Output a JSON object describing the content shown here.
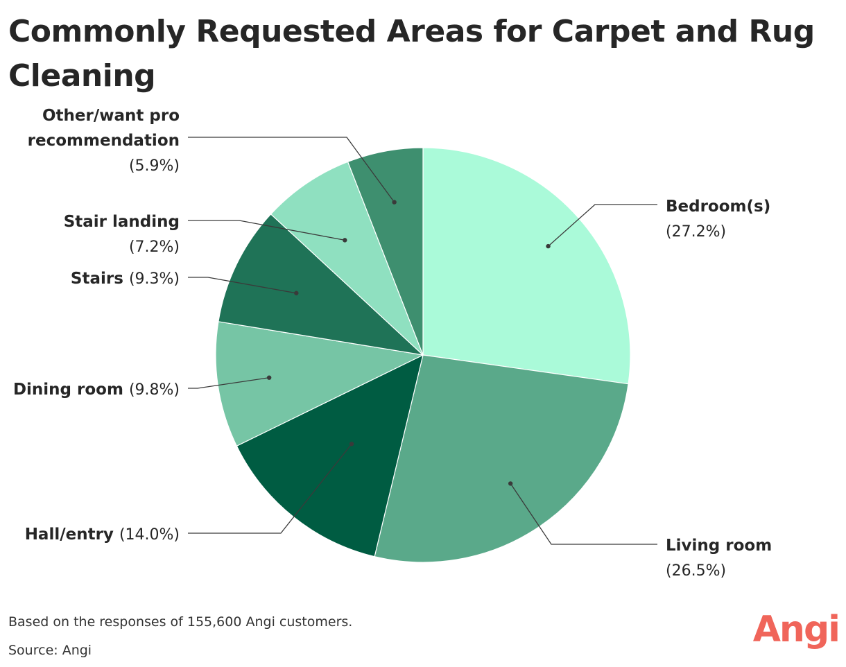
{
  "title": "Commonly Requested Areas for Carpet and Rug Cleaning",
  "footnote": "Based on the responses of 155,600 Angi customers.",
  "source": "Source: Angi",
  "logo": "Angi",
  "colors": {
    "brand": "#f0655a",
    "text": "#262626",
    "leader": "#3a3a3a"
  },
  "chart_data": {
    "type": "pie",
    "start": "12 o'clock",
    "direction": "clockwise",
    "slices": [
      {
        "label": "Bedroom(s)",
        "label_lines": [
          "Bedroom(s)"
        ],
        "value": 27.2,
        "value_label": "(27.2%)",
        "color": "#aafad9"
      },
      {
        "label": "Living room",
        "label_lines": [
          "Living room"
        ],
        "value": 26.5,
        "value_label": "(26.5%)",
        "color": "#5aa98a"
      },
      {
        "label": "Hall/entry",
        "label_lines": [
          "Hall/entry"
        ],
        "value": 14.0,
        "value_label": "(14.0%)",
        "color": "#005c42"
      },
      {
        "label": "Dining room",
        "label_lines": [
          "Dining room"
        ],
        "value": 9.8,
        "value_label": "(9.8%)",
        "color": "#76c5a5"
      },
      {
        "label": "Stairs",
        "label_lines": [
          "Stairs"
        ],
        "value": 9.3,
        "value_label": "(9.3%)",
        "color": "#1f7357"
      },
      {
        "label": "Stair landing",
        "label_lines": [
          "Stair landing"
        ],
        "value": 7.2,
        "value_label": "(7.2%)",
        "color": "#8fe0c0"
      },
      {
        "label": "Other/want pro recommendation",
        "label_lines": [
          "Other/want pro",
          "recommendation"
        ],
        "value": 5.9,
        "value_label": "(5.9%)",
        "color": "#3e8f6f"
      }
    ]
  }
}
